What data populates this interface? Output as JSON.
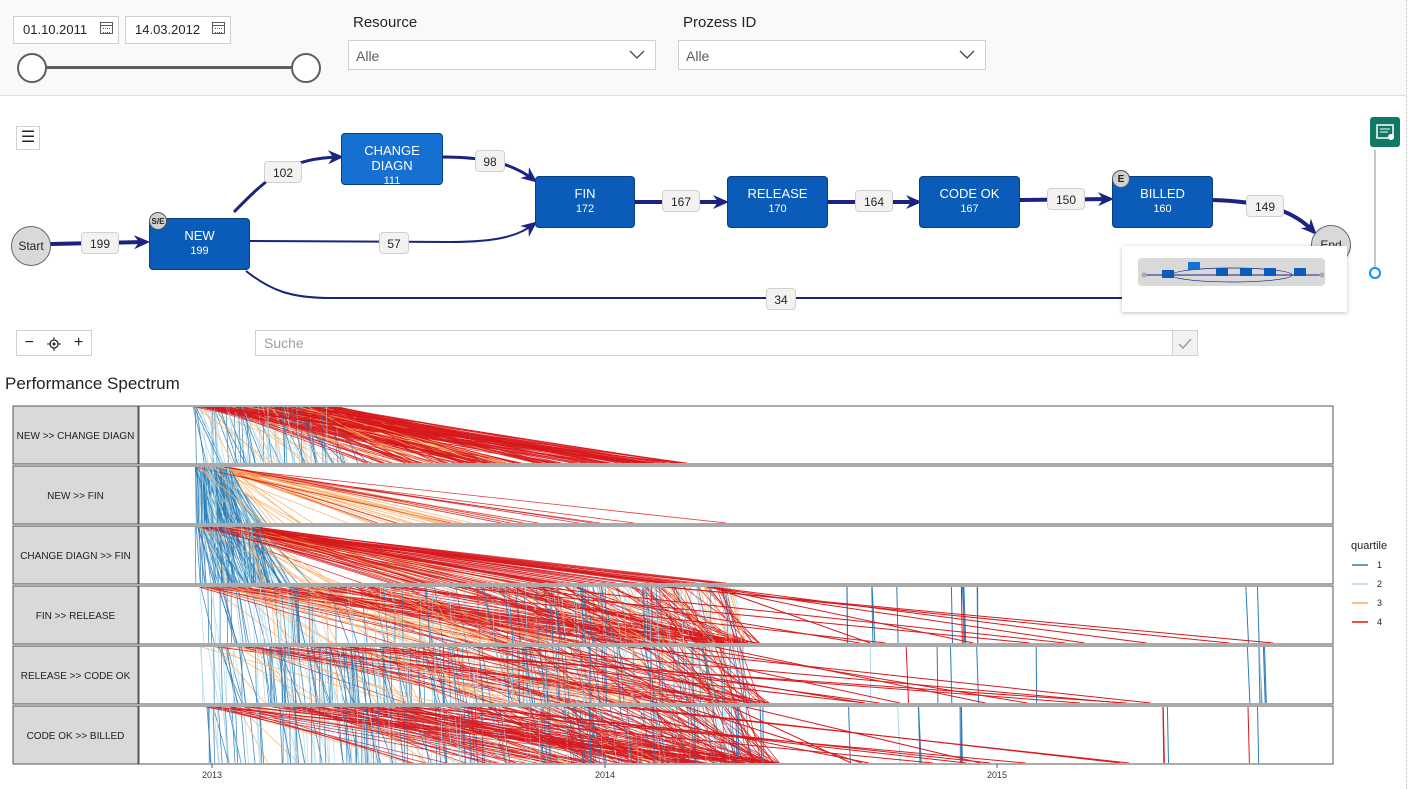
{
  "filters": {
    "date_from": "01.10.2011",
    "date_to": "14.03.2012",
    "resource_label": "Resource",
    "resource_value": "Alle",
    "process_label": "Prozess ID",
    "process_value": "Alle"
  },
  "process_map": {
    "start_label": "Start",
    "end_label": "End",
    "nodes": [
      {
        "name": "NEW",
        "count": "199",
        "badge": "S/E"
      },
      {
        "name": "CHANGE DIAGN",
        "count": "111"
      },
      {
        "name": "FIN",
        "count": "172"
      },
      {
        "name": "RELEASE",
        "count": "170"
      },
      {
        "name": "CODE OK",
        "count": "167"
      },
      {
        "name": "BILLED",
        "count": "160",
        "badge": "E"
      }
    ],
    "edges": [
      {
        "from": "Start",
        "to": "NEW",
        "label": "199"
      },
      {
        "from": "NEW",
        "to": "CHANGE DIAGN",
        "label": "102"
      },
      {
        "from": "CHANGE DIAGN",
        "to": "FIN",
        "label": "98"
      },
      {
        "from": "NEW",
        "to": "FIN",
        "label": "57"
      },
      {
        "from": "FIN",
        "to": "RELEASE",
        "label": "167"
      },
      {
        "from": "RELEASE",
        "to": "CODE OK",
        "label": "164"
      },
      {
        "from": "CODE OK",
        "to": "BILLED",
        "label": "150"
      },
      {
        "from": "BILLED",
        "to": "End",
        "label": "149"
      },
      {
        "from": "NEW",
        "to": "End",
        "label": "34"
      }
    ],
    "search_placeholder": "Suche"
  },
  "spectrum": {
    "title": "Performance Spectrum",
    "rows": [
      "NEW >> CHANGE DIAGN",
      "NEW >> FIN",
      "CHANGE DIAGN >> FIN",
      "FIN >> RELEASE",
      "RELEASE >> CODE OK",
      "CODE OK >> BILLED"
    ],
    "x_ticks": [
      "2013",
      "2014",
      "2015"
    ],
    "legend_title": "quartile",
    "legend_items": [
      "1",
      "2",
      "3",
      "4"
    ]
  },
  "colors": {
    "q1": "#2c7bb6",
    "q2": "#abd9e9",
    "q3": "#fdae61",
    "q4": "#d7191c",
    "node": "#0b5cb8",
    "edge": "#1a237e"
  }
}
